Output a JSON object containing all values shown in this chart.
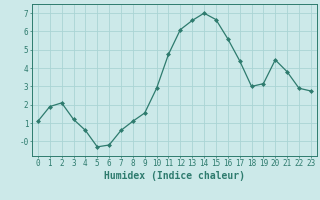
{
  "x": [
    0,
    1,
    2,
    3,
    4,
    5,
    6,
    7,
    8,
    9,
    10,
    11,
    12,
    13,
    14,
    15,
    16,
    17,
    18,
    19,
    20,
    21,
    22,
    23
  ],
  "y": [
    1.1,
    1.9,
    2.1,
    1.2,
    0.6,
    -0.3,
    -0.2,
    0.6,
    1.1,
    1.55,
    2.9,
    4.75,
    6.1,
    6.6,
    7.0,
    6.65,
    5.6,
    4.4,
    3.0,
    3.15,
    4.45,
    3.8,
    2.9,
    2.75
  ],
  "line_color": "#2e7b6e",
  "marker": "D",
  "marker_size": 2.0,
  "bg_color": "#cce9e9",
  "grid_color": "#aad4d4",
  "xlabel": "Humidex (Indice chaleur)",
  "ylim": [
    -0.8,
    7.5
  ],
  "xlim": [
    -0.5,
    23.5
  ],
  "yticks": [
    0,
    1,
    2,
    3,
    4,
    5,
    6,
    7
  ],
  "ytick_labels": [
    "-0",
    "1",
    "2",
    "3",
    "4",
    "5",
    "6",
    "7"
  ],
  "xticks": [
    0,
    1,
    2,
    3,
    4,
    5,
    6,
    7,
    8,
    9,
    10,
    11,
    12,
    13,
    14,
    15,
    16,
    17,
    18,
    19,
    20,
    21,
    22,
    23
  ],
  "axis_color": "#2e7b6e",
  "label_fontsize": 6.5,
  "tick_fontsize": 5.5,
  "xlabel_fontsize": 7.0,
  "linewidth": 0.9
}
